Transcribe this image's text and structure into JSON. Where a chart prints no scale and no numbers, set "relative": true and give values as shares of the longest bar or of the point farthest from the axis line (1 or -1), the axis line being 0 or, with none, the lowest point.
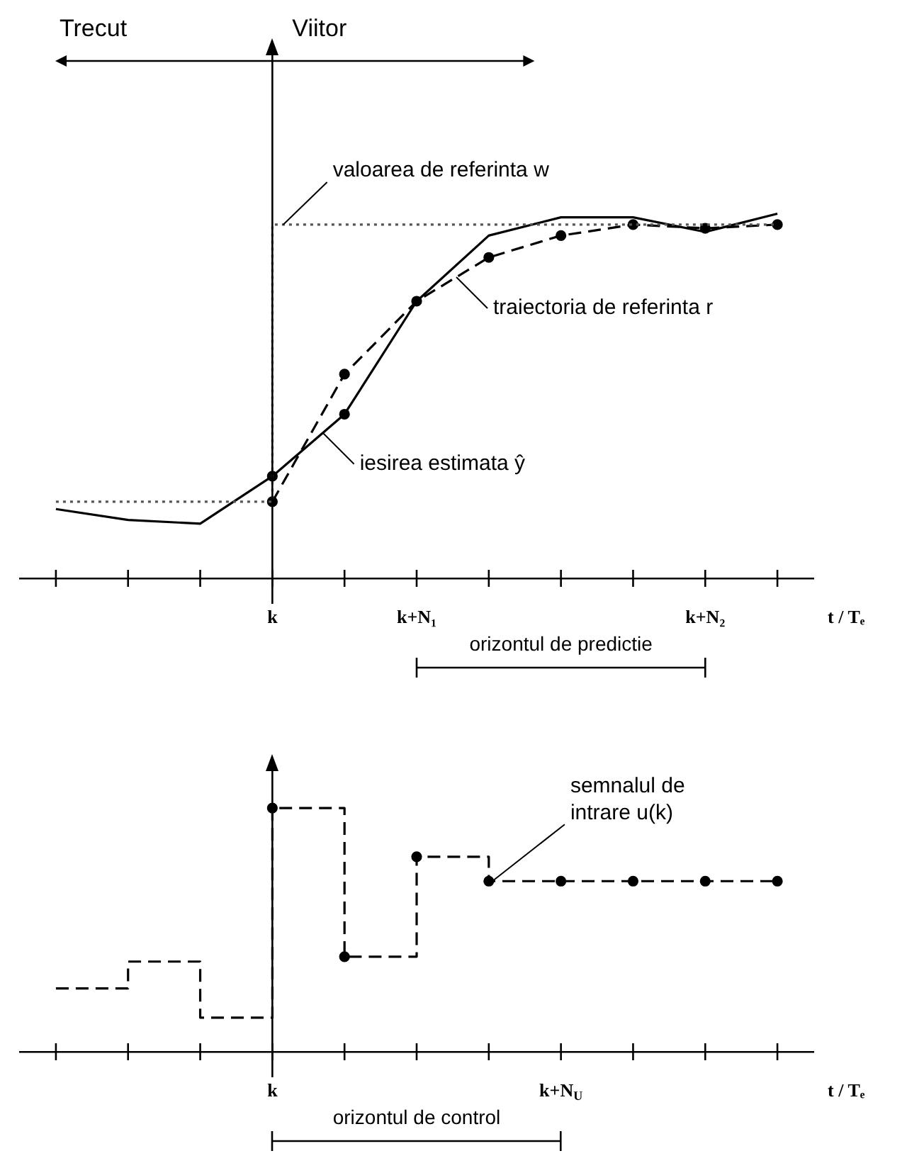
{
  "chart_data": [
    {
      "type": "line",
      "relative": true,
      "xlabel": "t / Tₑ",
      "categories": [
        null,
        null,
        null,
        "k",
        null,
        "k+N₁",
        null,
        null,
        null,
        "k+N₂",
        null
      ],
      "annotations": [
        "Trecut",
        "Viitor",
        "orizontul de predictie"
      ],
      "ref_lines": [
        {
          "axis": "x",
          "value": "k"
        }
      ],
      "series": [
        {
          "name": "valoarea de referinta w",
          "type": "step",
          "color": "#555555",
          "line_style": "dotted",
          "marker": "none",
          "values": [
            0.21,
            0.21,
            0.21,
            0.97,
            0.97,
            0.97,
            0.97,
            0.97,
            0.97,
            0.97,
            0.97
          ]
        },
        {
          "name": "iesirea estimata ŷ",
          "color": "#000000",
          "line_style": "solid",
          "marker": "none",
          "values": [
            0.19,
            0.16,
            0.15,
            0.28,
            0.45,
            0.76,
            0.94,
            0.99,
            0.99,
            0.95,
            1.0
          ]
        },
        {
          "name": "traiectoria de referinta r",
          "color": "#000000",
          "line_style": "dashed",
          "marker": "circle",
          "values": [
            null,
            null,
            null,
            0.21,
            0.56,
            0.76,
            0.88,
            0.94,
            0.97,
            0.96,
            0.97
          ]
        },
        {
          "type": "scatter",
          "color": "#000000",
          "marker": "circle",
          "values": [
            null,
            null,
            null,
            0.28,
            0.45,
            null,
            null,
            null,
            null,
            null,
            null
          ]
        }
      ]
    },
    {
      "type": "step",
      "relative": true,
      "xlabel": "t / Tₑ",
      "categories": [
        null,
        null,
        null,
        "k",
        null,
        null,
        null,
        "k+N$_{U}$",
        null,
        null,
        null
      ],
      "annotations": [
        "orizontul de control"
      ],
      "ref_lines": [
        {
          "axis": "x",
          "value": "k"
        }
      ],
      "series": [
        {
          "name": "semnalul de intrare u(k)",
          "color": "#000000",
          "line_style": "dashed",
          "marker": "none",
          "values": [
            0.26,
            0.37,
            0.14,
            1.0,
            0.39,
            0.8,
            0.7,
            0.7,
            0.7,
            0.7,
            0.7
          ]
        },
        {
          "type": "scatter",
          "color": "#000000",
          "marker": "circle",
          "values": [
            null,
            null,
            null,
            1.0,
            0.39,
            0.8,
            0.7,
            0.7,
            0.7,
            0.7,
            0.7
          ]
        }
      ]
    }
  ]
}
